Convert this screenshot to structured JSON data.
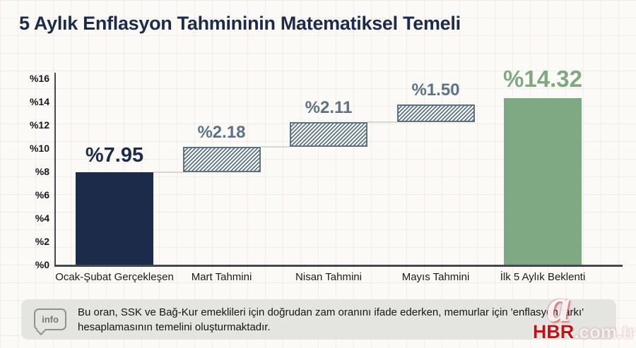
{
  "page": {
    "title": "5 Aylık Enflasyon Tahmininin Matematiksel Temeli"
  },
  "chart_data": {
    "type": "bar",
    "subtype": "waterfall",
    "title": "5 Aylık Enflasyon Tahmininin Matematiksel Temeli",
    "categories": [
      "Ocak-Şubat Gerçekleşen",
      "Mart Tahmini",
      "Nisan Tahmini",
      "Mayıs Tahmini",
      "İlk 5 Aylık Beklenti"
    ],
    "bars": [
      {
        "category": "Ocak-Şubat Gerçekleşen",
        "label": "%7.95",
        "value": 7.95,
        "start": 0,
        "end": 7.95,
        "style": "solid-navy"
      },
      {
        "category": "Mart Tahmini",
        "label": "%2.18",
        "value": 2.18,
        "start": 7.95,
        "end": 10.13,
        "style": "hatched"
      },
      {
        "category": "Nisan Tahmini",
        "label": "%2.11",
        "value": 2.11,
        "start": 10.13,
        "end": 12.24,
        "style": "hatched"
      },
      {
        "category": "Mayıs Tahmini",
        "label": "%1.50",
        "value": 1.5,
        "start": 12.24,
        "end": 13.74,
        "style": "hatched"
      },
      {
        "category": "İlk 5 Aylık Beklenti",
        "label": "%14.32",
        "value": 14.32,
        "start": 0,
        "end": 14.32,
        "style": "solid-green"
      }
    ],
    "ylim": [
      0,
      16
    ],
    "y_tick_step": 2,
    "y_tick_labels": [
      "%0",
      "%2",
      "%4",
      "%6",
      "%8",
      "%10",
      "%12",
      "%14",
      "%16"
    ],
    "legend": "none",
    "grid": "faint-page-grid",
    "colors": {
      "navy": "#1c2b4a",
      "slate": "#5d7384",
      "green": "#7ea983",
      "connector": "#d8d7d3"
    }
  },
  "info": {
    "icon_label": "info",
    "text": "Bu oran, SSK ve Bağ-Kur emeklileri için doğrudan zam oranını ifade ederken, memurlar için 'enflasyon farkı' hesaplamasının temelini oluşturmaktadır."
  },
  "watermark": {
    "letter": "a",
    "brand": "HBR",
    "suffix": ".com.tr"
  }
}
